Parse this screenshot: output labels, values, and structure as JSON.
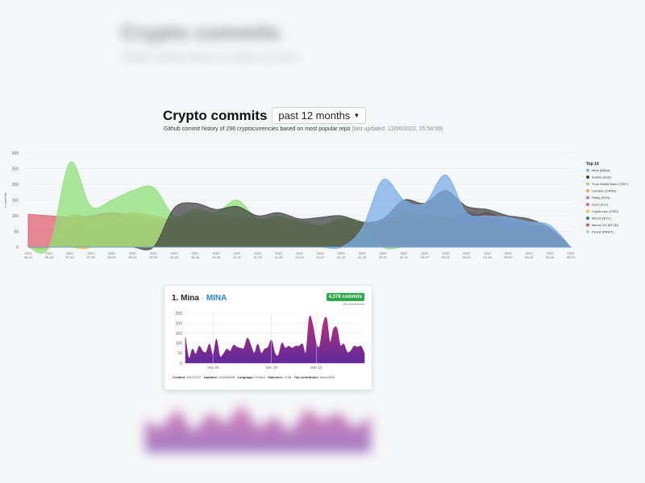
{
  "header": {
    "title": "Crypto commits",
    "period": "past 12 months",
    "subtitle": "Github commit history of 296 cryptocurrencies based on most popular repo",
    "last_updated": "(last updated: 12/06/2022, 15:54:09)"
  },
  "blurred": {
    "title": "Crypto commits",
    "subtitle": "Github commit history of cryptocurrencies"
  },
  "chart_data": [
    {
      "type": "area",
      "ylabel": "# commits",
      "ylim": [
        0,
        300
      ],
      "yticks": [
        0,
        50,
        100,
        150,
        200,
        250,
        300
      ],
      "x": [
        "2021 06-14",
        "2021 06-28",
        "2021 07-12",
        "2021 07-26",
        "2021 08-09",
        "2021 08-23",
        "2021 09-06",
        "2021 09-20",
        "2021 10-04",
        "2021 10-18",
        "2021 11-01",
        "2021 11-15",
        "2021 11-29",
        "2021 12-13",
        "2021 12-27",
        "2022 01-10",
        "2022 01-24",
        "2022 02-07",
        "2022 02-21",
        "2022 03-07",
        "2022 03-21",
        "2022 04-04",
        "2022 04-18",
        "2022 05-02",
        "2022 05-16",
        "2022 05-30",
        "2022 06-13"
      ],
      "legend_title": "Top 10",
      "legend_position": "right",
      "series": [
        {
          "name": "Mina (MINA)",
          "color": "#7aaee6",
          "values": [
            0,
            0,
            0,
            0,
            0,
            0,
            0,
            0,
            0,
            0,
            0,
            0,
            0,
            0,
            0,
            0,
            60,
            215,
            150,
            140,
            230,
            110,
            100,
            95,
            80,
            70,
            0
          ]
        },
        {
          "name": "Solana (SOL)",
          "color": "#444444",
          "values": [
            0,
            0,
            0,
            0,
            0,
            0,
            0,
            125,
            140,
            120,
            130,
            100,
            110,
            90,
            95,
            100,
            80,
            90,
            150,
            140,
            180,
            130,
            120,
            100,
            90,
            60,
            0
          ]
        },
        {
          "name": "Trust Wallet Token (TWT)",
          "color": "#8ee07a",
          "values": [
            0,
            0,
            270,
            130,
            150,
            180,
            190,
            100,
            120,
            110,
            150,
            90,
            100,
            80,
            70,
            90,
            80,
            0,
            0,
            0,
            0,
            0,
            0,
            0,
            0,
            0,
            0
          ]
        },
        {
          "name": "Cardano (CARD)",
          "color": "#f2a35c",
          "values": [
            0,
            0,
            100,
            90,
            95,
            110,
            100,
            90,
            110,
            100,
            90,
            80,
            85,
            80,
            60,
            90,
            70,
            80,
            110,
            100,
            90,
            80,
            70,
            60,
            50,
            40,
            0
          ]
        },
        {
          "name": "Parity (PEG)",
          "color": "#a07de0",
          "values": [
            0,
            0,
            60,
            80,
            90,
            100,
            90,
            80,
            85,
            80,
            70,
            75,
            80,
            60,
            50,
            70,
            60,
            70,
            90,
            85,
            80,
            110,
            90,
            80,
            70,
            40,
            0
          ]
        },
        {
          "name": "Iconx (ICX)",
          "color": "#e06070",
          "values": [
            105,
            100,
            95,
            100,
            110,
            100,
            90,
            85,
            90,
            100,
            95,
            90,
            80,
            75,
            70,
            80,
            75,
            80,
            85,
            100,
            95,
            90,
            110,
            80,
            70,
            60,
            0
          ]
        },
        {
          "name": "Crypto.com (CRO)",
          "color": "#e5cc4a",
          "values": [
            0,
            0,
            0,
            0,
            70,
            65,
            60,
            70,
            75,
            60,
            65,
            70,
            60,
            55,
            50,
            60,
            70,
            75,
            65,
            70,
            60,
            55,
            50,
            45,
            40,
            35,
            0
          ]
        },
        {
          "name": "Bitcoin (BTC)",
          "color": "#2e7d6e",
          "values": [
            0,
            0,
            60,
            55,
            60,
            65,
            55,
            60,
            50,
            55,
            60,
            50,
            55,
            50,
            45,
            55,
            60,
            50,
            55,
            60,
            50,
            55,
            50,
            45,
            40,
            35,
            0
          ]
        },
        {
          "name": "Bitcoin SV (BTCB)",
          "color": "#d9534f",
          "values": [
            0,
            0,
            40,
            45,
            50,
            55,
            45,
            50,
            45,
            50,
            55,
            45,
            40,
            45,
            40,
            45,
            50,
            45,
            40,
            45,
            50,
            55,
            45,
            40,
            35,
            30,
            0
          ]
        },
        {
          "name": "Permit (PRMT)",
          "color": "#9fd4c4",
          "values": [
            0,
            0,
            60,
            60,
            65,
            70,
            75,
            80,
            85,
            80,
            75,
            80,
            90,
            85,
            70,
            70,
            65,
            60,
            55,
            60,
            70,
            75,
            65,
            60,
            55,
            50,
            0
          ]
        }
      ]
    },
    {
      "type": "area",
      "title": "1. Mina",
      "ticker": "MINA",
      "ylim": [
        0,
        250
      ],
      "yticks": [
        0,
        50,
        100,
        150,
        200,
        250
      ],
      "x_tick_labels": [
        "Sep 26",
        "Dec 19",
        "Mar 13"
      ],
      "series": [
        {
          "name": "Mina",
          "color": "#9b2d8f",
          "values": [
            130,
            25,
            70,
            45,
            85,
            60,
            55,
            95,
            40,
            120,
            35,
            45,
            70,
            60,
            90,
            80,
            75,
            75,
            125,
            90,
            50,
            95,
            50,
            70,
            80,
            115,
            50,
            40,
            100,
            75,
            85,
            75,
            85,
            85,
            95,
            55,
            230,
            190,
            100,
            85,
            195,
            225,
            105,
            170,
            175,
            90,
            95,
            55,
            60,
            85,
            80,
            85,
            50
          ]
        }
      ]
    }
  ],
  "card": {
    "rank_name": "1. Mina",
    "ticker": "MINA",
    "commits_badge": "4,378 commits",
    "contributors": "88 contributors",
    "created_label": "Created:",
    "created_value": "2017/2/27",
    "updated_label": "Updated:",
    "updated_value": "2022/06/06",
    "language_label": "Language:",
    "language_value": "OCaml",
    "watchers_label": "Watchers:",
    "watchers_value": "1136",
    "contributor_label": "Top contributor:",
    "contributor_value": "mrmr1993"
  }
}
